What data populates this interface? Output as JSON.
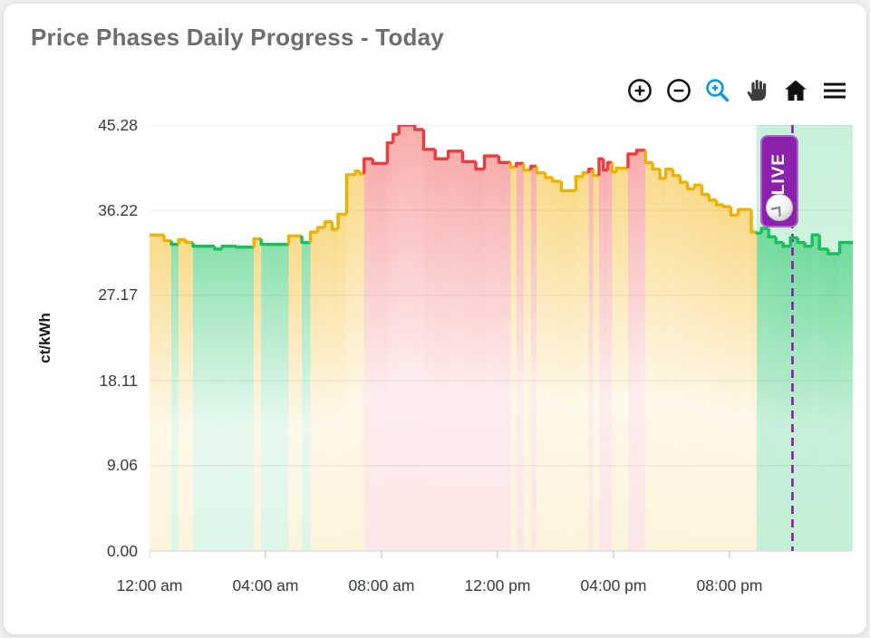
{
  "header": {
    "title": "Price Phases Daily Progress - Today"
  },
  "toolbar": {
    "icons": [
      {
        "name": "zoom-in-icon",
        "color": "#111111"
      },
      {
        "name": "zoom-out-icon",
        "color": "#111111"
      },
      {
        "name": "selection-zoom-icon",
        "color": "#0e9bd8"
      },
      {
        "name": "pan-hand-icon",
        "color": "#3d3d3d"
      },
      {
        "name": "home-reset-icon",
        "color": "#111111"
      },
      {
        "name": "menu-icon",
        "color": "#111111"
      }
    ]
  },
  "chart_data": {
    "type": "area",
    "title": "Price Phases Daily Progress - Today",
    "xlabel": "",
    "ylabel": "ct/kWh",
    "ylim": [
      0,
      45.28
    ],
    "xlim_hours": [
      0,
      24.25
    ],
    "grid": "horizontal-only",
    "yticks": [
      {
        "label": "45.28",
        "value": 45.28
      },
      {
        "label": "36.22",
        "value": 36.22
      },
      {
        "label": "27.17",
        "value": 27.17
      },
      {
        "label": "18.11",
        "value": 18.11
      },
      {
        "label": "9.06",
        "value": 9.06
      },
      {
        "label": "0.00",
        "value": 0.0
      }
    ],
    "xticks": [
      "12:00 am",
      "04:00 am",
      "08:00 am",
      "12:00 pm",
      "04:00 pm",
      "08:00 pm"
    ],
    "phases": {
      "g": {
        "name": "low-price-phase",
        "color": "#16c15d"
      },
      "y": {
        "name": "medium-price-phase",
        "color": "#efb100"
      },
      "r": {
        "name": "high-price-phase",
        "color": "#ee3b3b"
      }
    },
    "segments": [
      [
        0.0,
        0.5,
        33.6,
        "y"
      ],
      [
        0.5,
        0.75,
        33.0,
        "y"
      ],
      [
        0.75,
        1.0,
        32.6,
        "g"
      ],
      [
        1.0,
        1.25,
        33.1,
        "y"
      ],
      [
        1.25,
        1.5,
        32.8,
        "y"
      ],
      [
        1.5,
        2.25,
        32.4,
        "g"
      ],
      [
        2.25,
        2.5,
        32.1,
        "g"
      ],
      [
        2.5,
        3.0,
        32.4,
        "g"
      ],
      [
        3.0,
        3.6,
        32.3,
        "g"
      ],
      [
        3.6,
        3.85,
        33.2,
        "y"
      ],
      [
        3.85,
        4.8,
        32.6,
        "g"
      ],
      [
        4.8,
        5.25,
        33.5,
        "y"
      ],
      [
        5.25,
        5.55,
        32.8,
        "g"
      ],
      [
        5.55,
        5.8,
        33.9,
        "y"
      ],
      [
        5.8,
        6.05,
        34.4,
        "y"
      ],
      [
        6.05,
        6.3,
        35.0,
        "y"
      ],
      [
        6.3,
        6.5,
        34.2,
        "y"
      ],
      [
        6.5,
        6.8,
        35.8,
        "y"
      ],
      [
        6.8,
        7.1,
        40.0,
        "y"
      ],
      [
        7.1,
        7.25,
        40.4,
        "y"
      ],
      [
        7.25,
        7.4,
        40.1,
        "y"
      ],
      [
        7.4,
        7.7,
        41.7,
        "r"
      ],
      [
        7.7,
        8.2,
        41.2,
        "r"
      ],
      [
        8.2,
        8.4,
        43.4,
        "r"
      ],
      [
        8.4,
        8.6,
        44.3,
        "r"
      ],
      [
        8.6,
        9.15,
        45.28,
        "r"
      ],
      [
        9.15,
        9.45,
        44.8,
        "r"
      ],
      [
        9.45,
        9.85,
        42.7,
        "r"
      ],
      [
        9.85,
        10.3,
        41.7,
        "r"
      ],
      [
        10.3,
        10.8,
        42.5,
        "r"
      ],
      [
        10.8,
        11.25,
        41.4,
        "r"
      ],
      [
        11.25,
        11.55,
        40.6,
        "r"
      ],
      [
        11.55,
        12.05,
        42.0,
        "r"
      ],
      [
        12.05,
        12.45,
        41.3,
        "r"
      ],
      [
        12.45,
        12.65,
        40.8,
        "y"
      ],
      [
        12.65,
        12.9,
        41.2,
        "r"
      ],
      [
        12.9,
        13.15,
        40.5,
        "y"
      ],
      [
        13.15,
        13.35,
        40.9,
        "r"
      ],
      [
        13.35,
        13.65,
        40.2,
        "y"
      ],
      [
        13.65,
        13.9,
        39.7,
        "y"
      ],
      [
        13.9,
        14.2,
        39.3,
        "y"
      ],
      [
        14.2,
        14.7,
        38.3,
        "y"
      ],
      [
        14.7,
        14.95,
        39.8,
        "y"
      ],
      [
        14.95,
        15.15,
        40.2,
        "y"
      ],
      [
        15.15,
        15.3,
        40.6,
        "r"
      ],
      [
        15.3,
        15.5,
        39.9,
        "y"
      ],
      [
        15.5,
        15.65,
        41.7,
        "r"
      ],
      [
        15.65,
        15.8,
        40.5,
        "r"
      ],
      [
        15.8,
        15.95,
        41.3,
        "r"
      ],
      [
        15.95,
        16.1,
        40.3,
        "y"
      ],
      [
        16.1,
        16.5,
        40.7,
        "y"
      ],
      [
        16.5,
        16.8,
        42.2,
        "r"
      ],
      [
        16.8,
        17.1,
        42.6,
        "r"
      ],
      [
        17.1,
        17.35,
        41.3,
        "y"
      ],
      [
        17.35,
        17.6,
        40.6,
        "y"
      ],
      [
        17.6,
        17.8,
        39.6,
        "y"
      ],
      [
        17.8,
        18.05,
        40.6,
        "y"
      ],
      [
        18.05,
        18.3,
        39.9,
        "y"
      ],
      [
        18.3,
        18.55,
        39.2,
        "y"
      ],
      [
        18.55,
        18.8,
        38.5,
        "y"
      ],
      [
        18.8,
        19.05,
        38.9,
        "y"
      ],
      [
        19.05,
        19.3,
        37.9,
        "y"
      ],
      [
        19.3,
        19.55,
        37.3,
        "y"
      ],
      [
        19.55,
        19.8,
        36.8,
        "y"
      ],
      [
        19.8,
        20.05,
        36.6,
        "y"
      ],
      [
        20.05,
        20.3,
        35.7,
        "y"
      ],
      [
        20.3,
        20.75,
        36.3,
        "y"
      ],
      [
        20.75,
        20.95,
        33.9,
        "y"
      ],
      [
        20.95,
        21.1,
        33.8,
        "g"
      ],
      [
        21.1,
        21.35,
        34.3,
        "g"
      ],
      [
        21.35,
        21.6,
        33.4,
        "g"
      ],
      [
        21.6,
        21.85,
        32.8,
        "g"
      ],
      [
        21.85,
        22.1,
        32.4,
        "g"
      ],
      [
        22.1,
        22.35,
        33.3,
        "g"
      ],
      [
        22.35,
        22.6,
        32.8,
        "g"
      ],
      [
        22.6,
        22.85,
        32.4,
        "g"
      ],
      [
        22.85,
        23.1,
        33.6,
        "g"
      ],
      [
        23.1,
        23.4,
        32.1,
        "g"
      ],
      [
        23.4,
        23.8,
        31.6,
        "g"
      ],
      [
        23.8,
        24.25,
        32.8,
        "g"
      ]
    ],
    "live": {
      "label": "LIVE",
      "badge_color": "#8b21ad",
      "badge_border_color": "#b063cc",
      "line_color": "#7e22a3",
      "line_time_h": 22.17,
      "band_start_h": 20.93,
      "band_color": "#2ecc71"
    },
    "legend_position": "none",
    "colors": {
      "grid": "#ededed",
      "axis": "#e0e0e0",
      "tick": "#d4d4d4",
      "tick_label": "#363c3e",
      "title": "#6d6d6d"
    }
  }
}
